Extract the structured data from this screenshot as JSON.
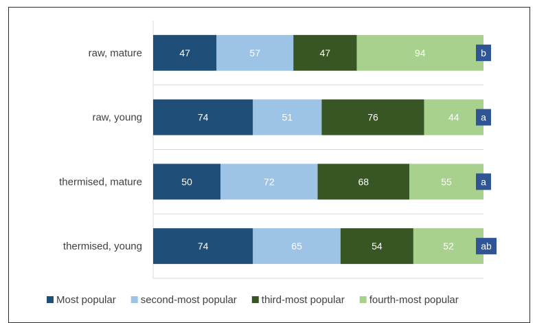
{
  "chart_data": {
    "type": "bar",
    "orientation": "horizontal",
    "stacked": true,
    "categories": [
      "raw, mature",
      "raw, young",
      "thermised, mature",
      "thermised, young"
    ],
    "series": [
      {
        "name": "Most popular",
        "values": [
          47,
          74,
          50,
          74
        ],
        "color": "#1f4e79",
        "label_color": "#ffffff"
      },
      {
        "name": "second-most popular",
        "values": [
          57,
          51,
          72,
          65
        ],
        "color": "#9dc3e6",
        "label_color": "#ffffff"
      },
      {
        "name": "third-most popular",
        "values": [
          47,
          76,
          68,
          54
        ],
        "color": "#375623",
        "label_color": "#ffffff"
      },
      {
        "name": "fourth-most popular",
        "values": [
          94,
          44,
          55,
          52
        ],
        "color": "#a9d18e",
        "label_color": "#ffffff"
      }
    ],
    "significance": [
      "b",
      "a",
      "a",
      "ab"
    ],
    "significance_color": "#2f5597",
    "grid": true,
    "legend_position": "bottom"
  }
}
